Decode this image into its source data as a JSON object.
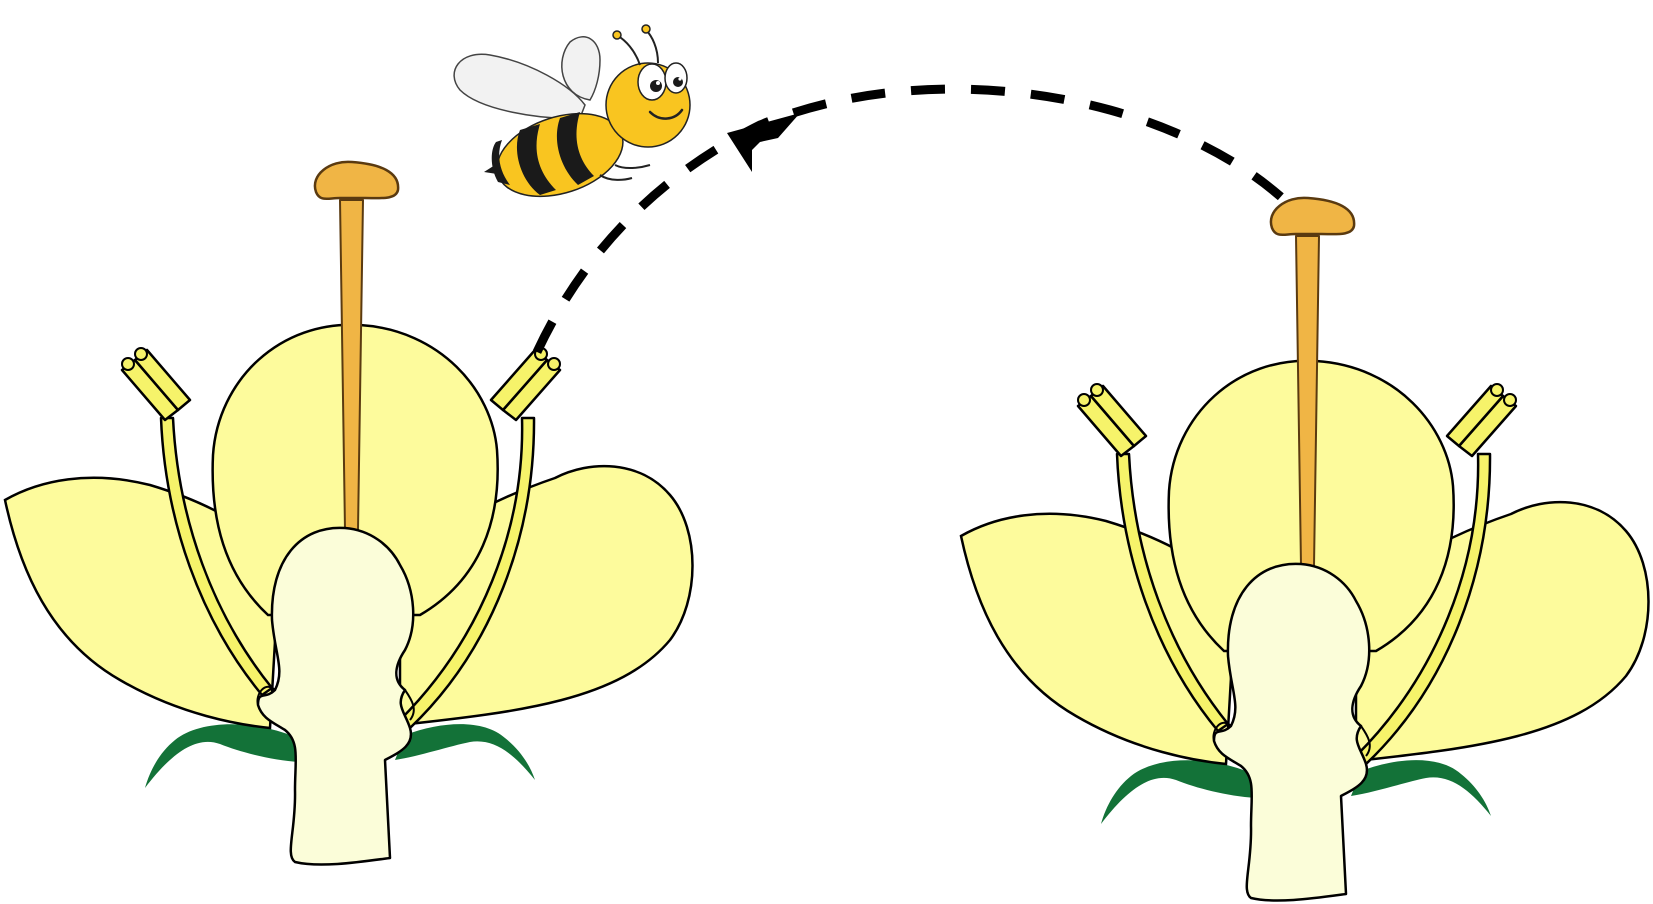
{
  "diagram": {
    "subject": "cross-pollination",
    "elements": [
      "flower-left",
      "flower-right",
      "bee",
      "pollen-path-arrow"
    ]
  },
  "colors": {
    "petal": "#fdfb9c",
    "ovary": "#fbfdd9",
    "style": "#f0b545",
    "stamen": "#f6f36a",
    "leaf": "#137238",
    "outline": "#000000",
    "bee_body": "#f9c520",
    "bee_stripe": "#1a1a1a",
    "wing": "#f2f2f2",
    "path": "#000000"
  }
}
